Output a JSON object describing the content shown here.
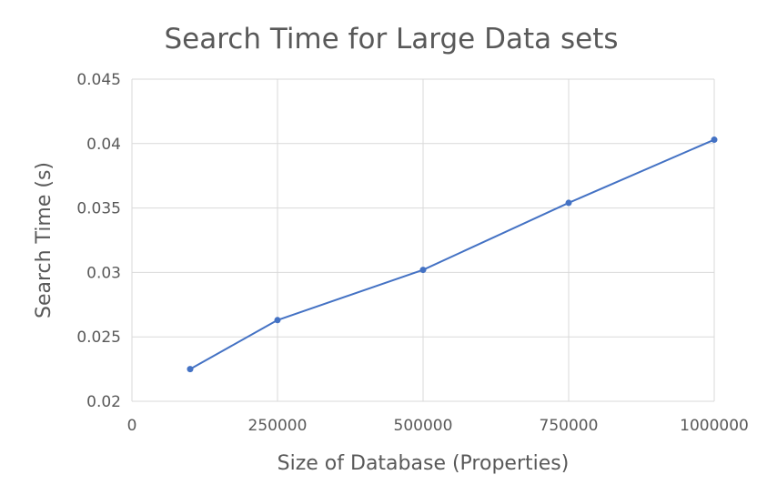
{
  "chart_data": {
    "type": "line",
    "title": "Search Time for Large Data sets",
    "xlabel": "Size of Database (Properties)",
    "ylabel": "Search Time (s)",
    "xlim": [
      0,
      1000000
    ],
    "ylim": [
      0.02,
      0.045
    ],
    "x_ticks": [
      0,
      250000,
      500000,
      750000,
      1000000
    ],
    "x_tick_labels": [
      "0",
      "250000",
      "500000",
      "750000",
      "1000000"
    ],
    "y_ticks": [
      0.02,
      0.025,
      0.03,
      0.035,
      0.04,
      0.045
    ],
    "y_tick_labels": [
      "0.02",
      "0.025",
      "0.03",
      "0.035",
      "0.04",
      "0.045"
    ],
    "grid": true,
    "legend": "none",
    "series": [
      {
        "color": "#4472C4",
        "x": [
          100000,
          250000,
          500000,
          750000,
          1000000
        ],
        "y": [
          0.0225,
          0.0263,
          0.0302,
          0.0354,
          0.0403
        ]
      }
    ]
  }
}
